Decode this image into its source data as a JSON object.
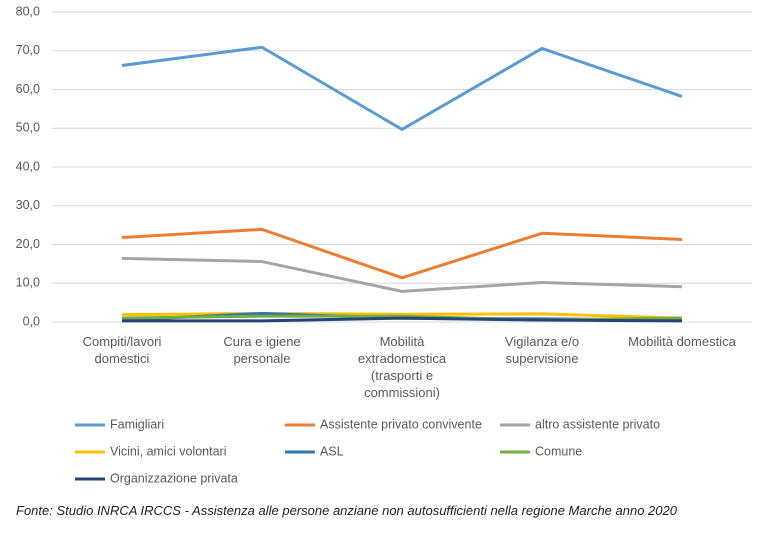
{
  "chart_data": {
    "type": "line",
    "categories": [
      "Compiti/lavori domestici",
      "Cura e igiene personale",
      "Mobilità extradomestica (trasporti e commissioni)",
      "Vigilanza e/o supervisione",
      "Mobilità domestica"
    ],
    "series": [
      {
        "name": "Famigliari",
        "color": "#5b9bd5",
        "values": [
          66.2,
          70.9,
          49.7,
          70.6,
          58.2
        ]
      },
      {
        "name": "Assistente privato convivente",
        "color": "#ed7d31",
        "values": [
          21.8,
          23.9,
          11.4,
          22.9,
          21.3
        ]
      },
      {
        "name": "altro assistente privato",
        "color": "#a5a5a5",
        "values": [
          16.4,
          15.6,
          7.9,
          10.2,
          9.1
        ]
      },
      {
        "name": "Vicini, amici volontari",
        "color": "#ffc000",
        "values": [
          1.9,
          2.2,
          2.0,
          2.1,
          1.0
        ]
      },
      {
        "name": "ASL",
        "color": "#2e75b6",
        "values": [
          0.5,
          2.2,
          1.0,
          0.8,
          0.5
        ]
      },
      {
        "name": "Comune",
        "color": "#70ad47",
        "values": [
          1.0,
          1.5,
          1.5,
          0.5,
          1.0
        ]
      },
      {
        "name": "Organizzazione privata",
        "color": "#264478",
        "values": [
          0.3,
          0.3,
          1.0,
          0.5,
          0.3
        ]
      }
    ],
    "ylim": [
      0,
      80
    ],
    "yticks": [
      {
        "value": 0,
        "label": "0,0"
      },
      {
        "value": 10,
        "label": "10,0"
      },
      {
        "value": 20,
        "label": "20,0"
      },
      {
        "value": 30,
        "label": "30,0"
      },
      {
        "value": 40,
        "label": "40,0"
      },
      {
        "value": 50,
        "label": "50,0"
      },
      {
        "value": 60,
        "label": "60,0"
      },
      {
        "value": 70,
        "label": "70,0"
      },
      {
        "value": 80,
        "label": "80,0"
      }
    ],
    "grid": true,
    "source": "Fonte: Studio INRCA IRCCS - Assistenza alle persone anziane non autosufficienti nella regione Marche anno 2020"
  }
}
